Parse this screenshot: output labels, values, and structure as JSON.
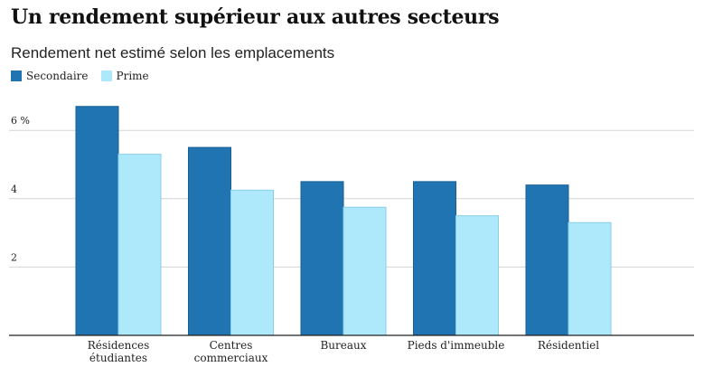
{
  "chart_data": {
    "type": "bar",
    "title": "Un rendement supérieur aux autres secteurs",
    "subtitle": "Rendement net estimé selon les emplacements",
    "categories": [
      [
        "Résidences",
        "étudiantes"
      ],
      [
        "Centres",
        "commerciaux"
      ],
      [
        "Bureaux"
      ],
      [
        "Pieds d'immeuble"
      ],
      [
        "Résidentiel"
      ]
    ],
    "series": [
      {
        "name": "Secondaire",
        "color": "#1f74b1",
        "values": [
          6.7,
          5.5,
          4.5,
          4.5,
          4.4
        ]
      },
      {
        "name": "Prime",
        "color": "#aee9fb",
        "values": [
          5.3,
          4.25,
          3.75,
          3.5,
          3.3
        ]
      }
    ],
    "yticks": [
      {
        "value": 2,
        "label": "2"
      },
      {
        "value": 4,
        "label": "4"
      },
      {
        "value": 6,
        "label": "6 %"
      }
    ],
    "ylim": [
      0,
      7
    ],
    "grid": true,
    "legend_position": "top-left"
  }
}
